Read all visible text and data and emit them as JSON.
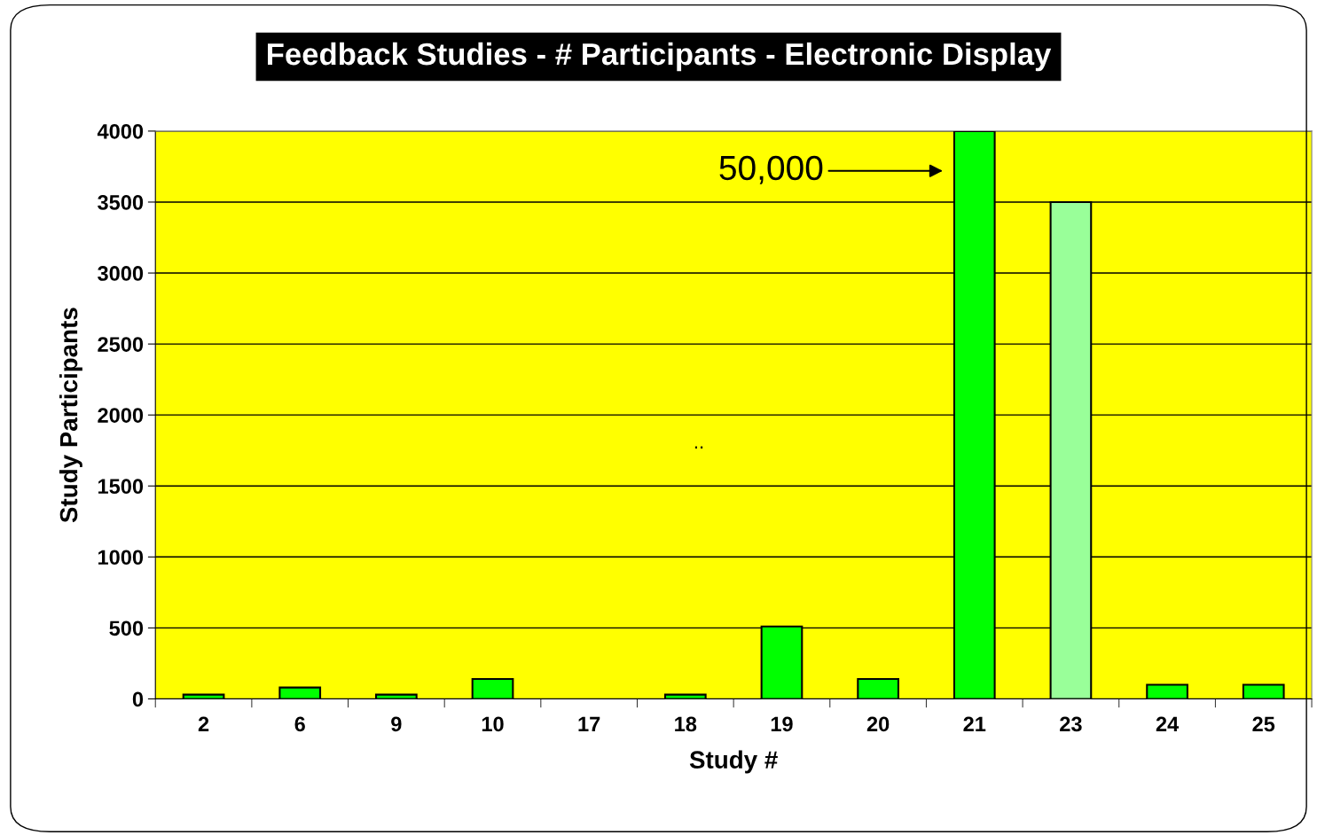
{
  "chart_data": {
    "type": "bar",
    "title": "Feedback Studies - # Participants - Electronic Display",
    "xlabel": "Study #",
    "ylabel": "Study Participants",
    "categories": [
      "2",
      "6",
      "9",
      "10",
      "17",
      "18",
      "19",
      "20",
      "21",
      "23",
      "24",
      "25"
    ],
    "values": [
      30,
      80,
      30,
      140,
      null,
      30,
      510,
      140,
      4000,
      3500,
      100,
      100
    ],
    "colors": [
      "#00ff00",
      "#00ff00",
      "#00ff00",
      "#00ff00",
      "#00ff00",
      "#00ff00",
      "#00ff00",
      "#00ff00",
      "#00ff00",
      "#99ff99",
      "#00ff00",
      "#00ff00"
    ],
    "ylim": [
      0,
      4000
    ],
    "yticks": [
      0,
      500,
      1000,
      1500,
      2000,
      2500,
      3000,
      3500,
      4000
    ],
    "grid": "y",
    "legend": false,
    "annotations": [
      "50,000",
      ".."
    ]
  }
}
